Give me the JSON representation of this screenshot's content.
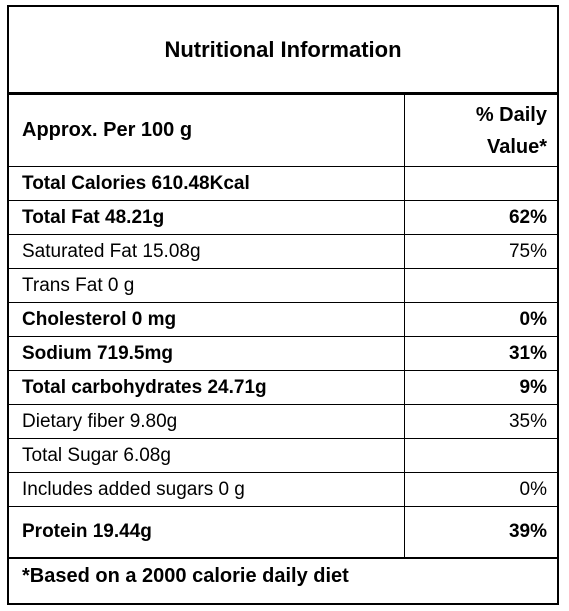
{
  "title": "Nutritional Information",
  "header": {
    "label": "Approx. Per 100 g",
    "daily_value_line1": "% Daily",
    "daily_value_line2": "Value*"
  },
  "rows": [
    {
      "label": "Total Calories 610.48Kcal",
      "value": "",
      "bold": true
    },
    {
      "label": "Total Fat 48.21g",
      "value": "62%",
      "bold": true
    },
    {
      "label": "Saturated Fat  15.08g",
      "value": "75%",
      "bold": false
    },
    {
      "label": "Trans Fat 0 g",
      "value": "",
      "bold": false
    },
    {
      "label": "Cholesterol 0 mg",
      "value": "0%",
      "bold": true
    },
    {
      "label": "Sodium 719.5mg",
      "value": "31%",
      "bold": true
    },
    {
      "label": "Total carbohydrates  24.71g",
      "value": "9%",
      "bold": true
    },
    {
      "label": "Dietary fiber  9.80g",
      "value": "35%",
      "bold": false
    },
    {
      "label": "Total Sugar 6.08g",
      "value": "",
      "bold": false
    },
    {
      "label": "Includes added sugars 0 g",
      "value": "0%",
      "bold": false
    },
    {
      "label": "Protein  19.44g",
      "value": "39%",
      "bold": true
    }
  ],
  "footnote": "*Based on a 2000 calorie daily diet"
}
